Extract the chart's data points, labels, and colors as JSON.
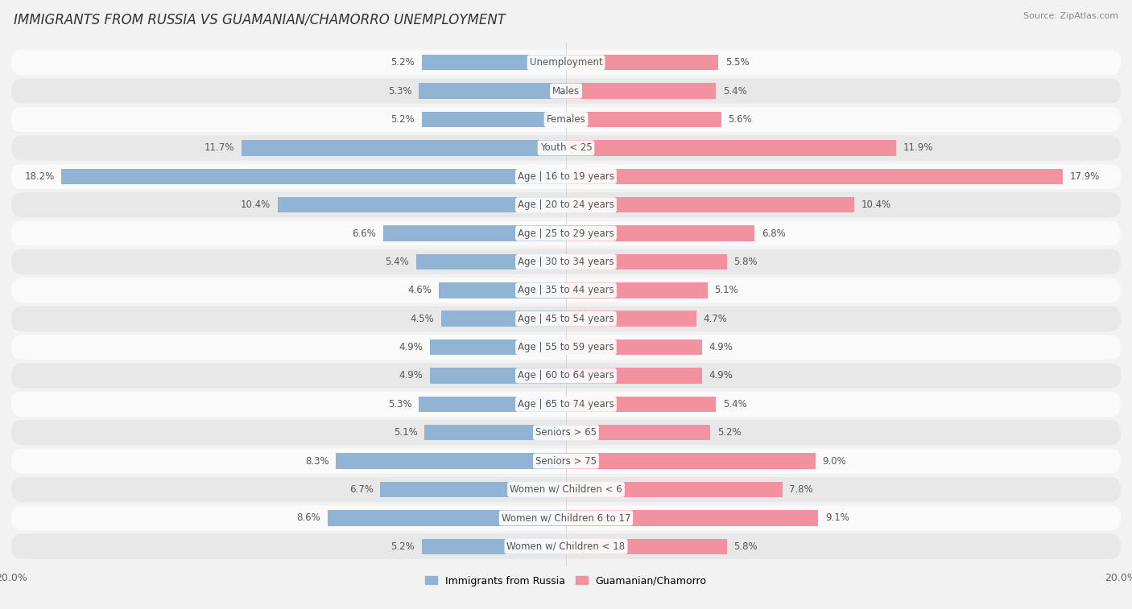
{
  "title": "IMMIGRANTS FROM RUSSIA VS GUAMANIAN/CHAMORRO UNEMPLOYMENT",
  "source": "Source: ZipAtlas.com",
  "categories": [
    "Unemployment",
    "Males",
    "Females",
    "Youth < 25",
    "Age | 16 to 19 years",
    "Age | 20 to 24 years",
    "Age | 25 to 29 years",
    "Age | 30 to 34 years",
    "Age | 35 to 44 years",
    "Age | 45 to 54 years",
    "Age | 55 to 59 years",
    "Age | 60 to 64 years",
    "Age | 65 to 74 years",
    "Seniors > 65",
    "Seniors > 75",
    "Women w/ Children < 6",
    "Women w/ Children 6 to 17",
    "Women w/ Children < 18"
  ],
  "russia_values": [
    5.2,
    5.3,
    5.2,
    11.7,
    18.2,
    10.4,
    6.6,
    5.4,
    4.6,
    4.5,
    4.9,
    4.9,
    5.3,
    5.1,
    8.3,
    6.7,
    8.6,
    5.2
  ],
  "guam_values": [
    5.5,
    5.4,
    5.6,
    11.9,
    17.9,
    10.4,
    6.8,
    5.8,
    5.1,
    4.7,
    4.9,
    4.9,
    5.4,
    5.2,
    9.0,
    7.8,
    9.1,
    5.8
  ],
  "russia_color": "#92b4d4",
  "guam_color": "#f2919f",
  "russia_label": "Immigrants from Russia",
  "guam_label": "Guamanian/Chamorro",
  "axis_limit": 20.0,
  "bg_color": "#f2f2f2",
  "row_bg_light": "#fafafa",
  "row_bg_dark": "#e8e8e8",
  "label_fontsize": 8.5,
  "title_fontsize": 12,
  "value_fontsize": 8.5
}
